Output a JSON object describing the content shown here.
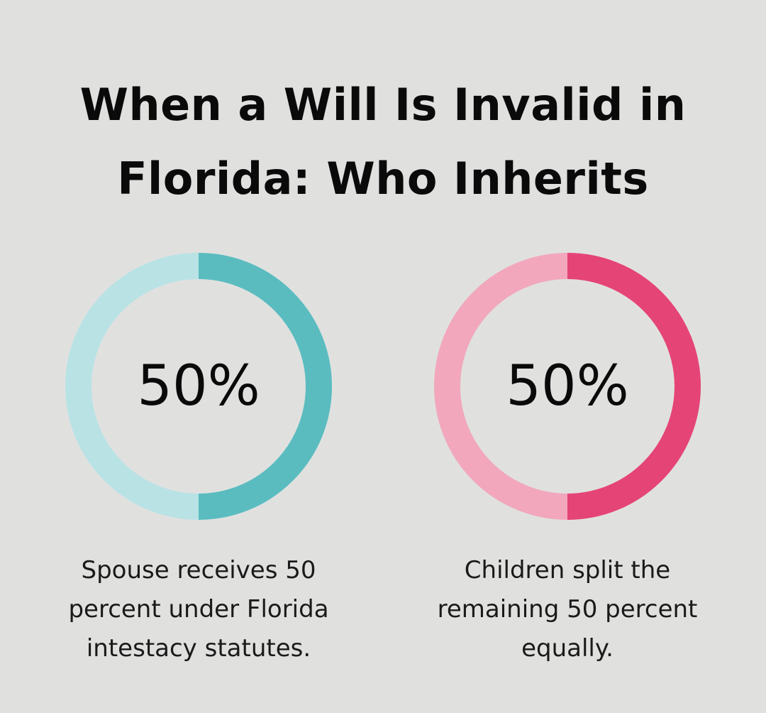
{
  "title": {
    "line1": "When a Will Is Invalid in",
    "line2": "Florida: Who Inherits"
  },
  "chart_data": [
    {
      "type": "pie",
      "variant": "donut",
      "value": 50,
      "max": 100,
      "label": "50%",
      "caption": {
        "line1": "Spouse receives 50",
        "line2": "percent under Florida",
        "line3": "intestacy statutes."
      },
      "colors": {
        "fill": "#5bbcc0",
        "track": "#b9e2e5"
      }
    },
    {
      "type": "pie",
      "variant": "donut",
      "value": 50,
      "max": 100,
      "label": "50%",
      "caption": {
        "line1": "Children split the",
        "line2": "remaining 50 percent",
        "line3": "equally."
      },
      "colors": {
        "fill": "#e54476",
        "track": "#f2a7bd"
      }
    }
  ]
}
